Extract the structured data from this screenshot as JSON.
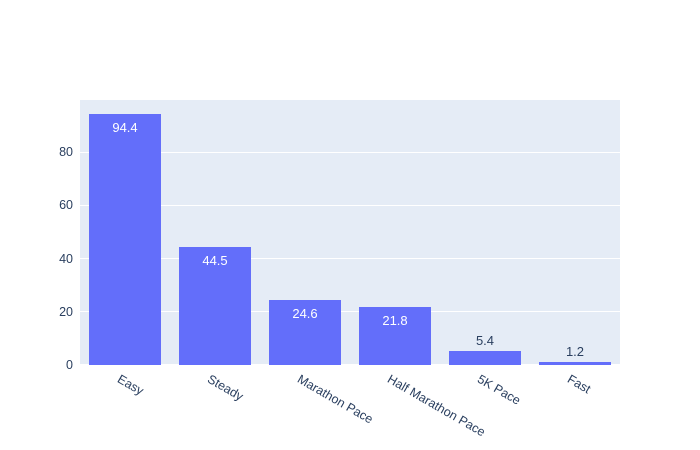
{
  "figure": {
    "title": "",
    "background": "#FFFFFF"
  },
  "chart_data": {
    "type": "bar",
    "title": "",
    "xlabel": "",
    "ylabel": "",
    "categories": [
      "Easy",
      "Steady",
      "Marathon Pace",
      "Half Marathon Pace",
      "5K Pace",
      "Fast"
    ],
    "values": [
      94.4,
      44.5,
      24.6,
      21.8,
      5.4,
      1.2
    ],
    "value_labels": [
      "94.4",
      "44.5",
      "24.6",
      "21.8",
      "5.4",
      "1.2"
    ],
    "value_label_positions": [
      "inside",
      "inside",
      "inside",
      "inside",
      "outside",
      "outside"
    ],
    "yticks": [
      0,
      20,
      40,
      60,
      80
    ],
    "ylim": [
      0,
      99.55
    ],
    "xtick_angle_deg": 30,
    "grid": true,
    "legend": false,
    "colors": {
      "bar": "#636EFA",
      "plot_bg": "#E5ECF6",
      "grid": "#FFFFFF",
      "tick_font": "#2A3F5F",
      "inside_label": "#FFFFFF",
      "outside_label": "#2A3F5F",
      "page_bg": "#FFFFFF"
    }
  }
}
